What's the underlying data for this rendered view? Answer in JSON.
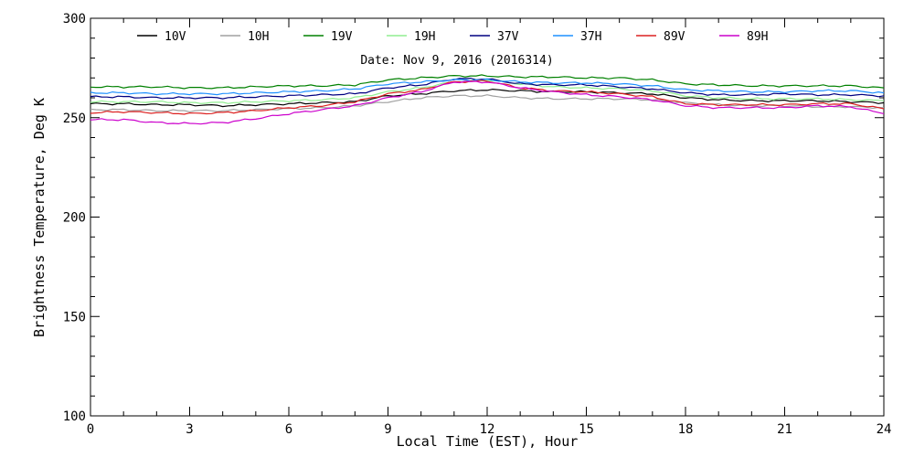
{
  "chart_data": {
    "type": "line",
    "title": "Date: Nov  9, 2016 (2016314)",
    "xlabel": "Local Time (EST), Hour",
    "ylabel": "Brightness Temperature, Deg K",
    "xlim": [
      0,
      24
    ],
    "ylim": [
      100,
      300
    ],
    "xticks": [
      0,
      3,
      6,
      9,
      12,
      15,
      18,
      21,
      24
    ],
    "xtick_labels": [
      "0",
      "3",
      "6",
      "9",
      "12",
      "15",
      "18",
      "21",
      "24"
    ],
    "yticks": [
      100,
      150,
      200,
      250,
      300
    ],
    "ytick_labels": [
      "100",
      "150",
      "200",
      "250",
      "300"
    ],
    "grid": false,
    "legend_position": "top",
    "x": [
      0,
      1,
      2,
      3,
      4,
      5,
      6,
      7,
      8,
      9,
      10,
      11,
      12,
      13,
      14,
      15,
      16,
      17,
      18,
      19,
      20,
      21,
      22,
      23,
      24
    ],
    "series": [
      {
        "name": "10V",
        "color": "#000000",
        "values": [
          257,
          257,
          256.5,
          256.5,
          256,
          256.5,
          257,
          257.5,
          258,
          261,
          262,
          263.5,
          264,
          263.5,
          263,
          263,
          262.5,
          262,
          260,
          259,
          258.5,
          258.5,
          258.5,
          258,
          257.5
        ]
      },
      {
        "name": "10H",
        "color": "#a0a0a0",
        "values": [
          254,
          254,
          253.5,
          253.5,
          253.5,
          254,
          254.5,
          255,
          256,
          258,
          260,
          261,
          261,
          260,
          259.5,
          259.5,
          259.5,
          259,
          257.5,
          256.5,
          256,
          256,
          255.5,
          255.5,
          255
        ]
      },
      {
        "name": "19V",
        "color": "#008000",
        "values": [
          265.5,
          265.5,
          265.5,
          265,
          265,
          265.5,
          266,
          266,
          266.5,
          269,
          270,
          271,
          271,
          270.5,
          270.5,
          270,
          270,
          269,
          267,
          266.5,
          266,
          266,
          266,
          266,
          265
        ]
      },
      {
        "name": "19H",
        "color": "#90ee90",
        "values": [
          258,
          258,
          258,
          257.5,
          257.5,
          258,
          258.5,
          259,
          260,
          263,
          265,
          268,
          269,
          267,
          265.5,
          265,
          264.5,
          263.5,
          261,
          260,
          259.5,
          259.5,
          259.5,
          259,
          258.5
        ]
      },
      {
        "name": "37V",
        "color": "#000080",
        "values": [
          260.5,
          260.5,
          260,
          260,
          260,
          260.5,
          261,
          261.5,
          262,
          265,
          266.5,
          269.5,
          269.5,
          267,
          266.5,
          266.5,
          265.5,
          264.5,
          262.5,
          261.5,
          261.5,
          262,
          261.5,
          261.5,
          261
        ]
      },
      {
        "name": "37H",
        "color": "#1e90ff",
        "values": [
          262.5,
          262.5,
          262,
          262,
          262,
          262.5,
          263,
          263.5,
          264.5,
          267,
          268,
          269,
          269,
          268,
          267.5,
          267.5,
          267,
          266,
          264,
          263.5,
          263,
          263,
          263.5,
          263.5,
          262.5
        ]
      },
      {
        "name": "89V",
        "color": "#dc2020",
        "values": [
          252.5,
          253,
          252.5,
          252,
          252.5,
          253.5,
          255,
          256,
          258,
          262,
          264,
          268,
          268.5,
          265,
          263.5,
          263,
          262,
          260.5,
          257,
          256.5,
          256.5,
          256.5,
          257,
          257,
          254.5
        ]
      },
      {
        "name": "89H",
        "color": "#cc00cc",
        "values": [
          249,
          249,
          247.5,
          247,
          247.5,
          249.5,
          252,
          254,
          256,
          260,
          263,
          268,
          268,
          265,
          263,
          261.5,
          260.5,
          259,
          256,
          255,
          255,
          255,
          256,
          255.5,
          252
        ]
      }
    ]
  }
}
